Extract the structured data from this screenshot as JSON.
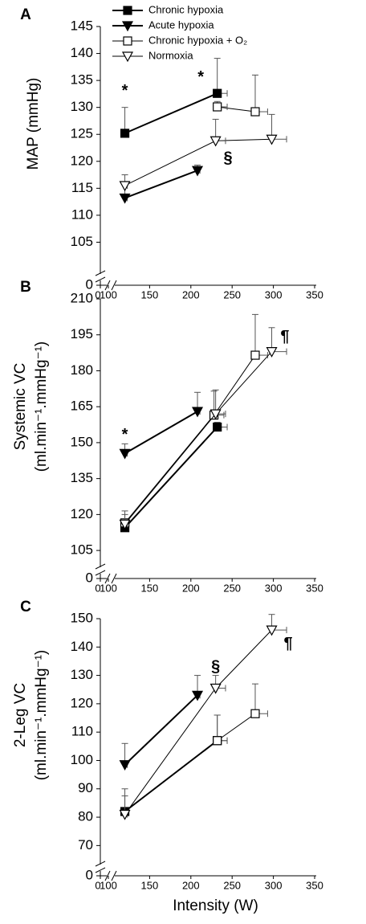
{
  "chart_data": [
    {
      "type": "line",
      "panel": "A",
      "ylabel": [
        "MAP (mmHg)"
      ],
      "xlim": [
        0,
        350
      ],
      "xbreak": [
        0,
        100
      ],
      "xticks": [
        0,
        100,
        150,
        200,
        250,
        300,
        350
      ],
      "ylim": [
        0,
        145
      ],
      "ybreak": [
        0,
        100
      ],
      "yticks": [
        0,
        105,
        110,
        115,
        120,
        125,
        130,
        135,
        140,
        145
      ],
      "legend": "top",
      "series": [
        {
          "name": "Chronic hypoxia",
          "color": "#000000",
          "marker": "square",
          "filled": true,
          "linewidth": 2,
          "x": [
            120,
            232
          ],
          "values": [
            125.2,
            132.6
          ],
          "yerr": [
            4.8,
            6.5
          ],
          "xerr": [
            4,
            12
          ]
        },
        {
          "name": "Acute hypoxia",
          "color": "#000000",
          "marker": "triangle-down",
          "filled": true,
          "linewidth": 2,
          "x": [
            120,
            208
          ],
          "values": [
            113.2,
            118.3
          ],
          "yerr": [
            2.7,
            1
          ],
          "xerr": [
            3,
            3
          ]
        },
        {
          "name": "Chronic hypoxia + O₂",
          "color": "#000000",
          "marker": "square",
          "filled": false,
          "linewidth": 1,
          "x": [
            232,
            278
          ],
          "values": [
            130.1,
            129.2
          ],
          "yerr": [
            1,
            6.8
          ],
          "xerr": [
            12,
            15
          ]
        },
        {
          "name": "Normoxia",
          "color": "#000000",
          "marker": "triangle-down",
          "filled": false,
          "linewidth": 1,
          "x": [
            120,
            230,
            298
          ],
          "values": [
            115.5,
            123.8,
            124.1
          ],
          "yerr": [
            2,
            4,
            4.6
          ],
          "xerr": [
            3,
            12,
            18
          ]
        }
      ],
      "annotations": [
        {
          "text": "*",
          "x": 120,
          "y": 133
        },
        {
          "text": "*",
          "x": 212,
          "y": 135.5
        },
        {
          "text": "§",
          "x": 245,
          "y": 120.5
        }
      ]
    },
    {
      "type": "line",
      "panel": "B",
      "ylabel": [
        "Systemic VC",
        "(ml.min⁻¹.mmHg⁻¹)"
      ],
      "xlim": [
        0,
        350
      ],
      "xbreak": [
        0,
        100
      ],
      "xticks": [
        0,
        100,
        150,
        200,
        250,
        300,
        350
      ],
      "ylim": [
        0,
        210
      ],
      "ybreak": [
        0,
        100
      ],
      "yticks": [
        0,
        105,
        120,
        135,
        150,
        165,
        180,
        195,
        210
      ],
      "series": [
        {
          "name": "Chronic hypoxia",
          "color": "#000000",
          "marker": "square",
          "filled": true,
          "linewidth": 2,
          "x": [
            120,
            232
          ],
          "values": [
            114.5,
            156.5
          ],
          "yerr": [
            2.5,
            2
          ],
          "xerr": [
            3,
            12
          ]
        },
        {
          "name": "Acute hypoxia",
          "color": "#000000",
          "marker": "triangle-down",
          "filled": true,
          "linewidth": 2,
          "x": [
            120,
            208
          ],
          "values": [
            145.5,
            163
          ],
          "yerr": [
            4,
            8
          ],
          "xerr": [
            3,
            3
          ]
        },
        {
          "name": "Chronic hypoxia + O₂",
          "color": "#000000",
          "marker": "square",
          "filled": false,
          "linewidth": 1,
          "x": [
            120,
            228,
            278
          ],
          "values": [
            116.5,
            161.5,
            186.5
          ],
          "yerr": [
            5,
            10,
            17
          ],
          "xerr": [
            3,
            12,
            15
          ]
        },
        {
          "name": "Normoxia",
          "color": "#000000",
          "marker": "triangle-down",
          "filled": false,
          "linewidth": 1,
          "x": [
            120,
            230,
            298
          ],
          "values": [
            116,
            162,
            188
          ],
          "yerr": [
            4,
            10,
            10
          ],
          "xerr": [
            3,
            12,
            18
          ]
        }
      ],
      "annotations": [
        {
          "text": "*",
          "x": 120,
          "y": 153
        },
        {
          "text": "¶",
          "x": 314,
          "y": 194
        }
      ]
    },
    {
      "type": "line",
      "panel": "C",
      "ylabel": [
        "2-Leg VC",
        "(ml.min⁻¹.mmHg⁻¹)"
      ],
      "xlabel": "Intensity (W)",
      "xlim": [
        0,
        350
      ],
      "xbreak": [
        0,
        100
      ],
      "xticks": [
        0,
        100,
        150,
        200,
        250,
        300,
        350
      ],
      "ylim": [
        0,
        150
      ],
      "ybreak": [
        0,
        65
      ],
      "yticks": [
        0,
        70,
        80,
        90,
        100,
        110,
        120,
        130,
        140,
        150
      ],
      "series": [
        {
          "name": "Chronic hypoxia",
          "color": "#000000",
          "marker": "square",
          "filled": true,
          "linewidth": 2,
          "x": [
            120,
            232
          ],
          "values": [
            82,
            107
          ],
          "yerr": [
            8,
            9
          ],
          "xerr": [
            3,
            12
          ]
        },
        {
          "name": "Acute hypoxia",
          "color": "#000000",
          "marker": "triangle-down",
          "filled": true,
          "linewidth": 2,
          "x": [
            120,
            208
          ],
          "values": [
            98.5,
            123
          ],
          "yerr": [
            7.5,
            7
          ],
          "xerr": [
            3,
            3
          ]
        },
        {
          "name": "Chronic hypoxia + O₂",
          "color": "#000000",
          "marker": "square",
          "filled": false,
          "linewidth": 1,
          "x": [
            232,
            278
          ],
          "values": [
            107,
            116.5
          ],
          "yerr": [
            9,
            10.5
          ],
          "xerr": [
            12,
            15
          ]
        },
        {
          "name": "Normoxia",
          "color": "#000000",
          "marker": "triangle-down",
          "filled": false,
          "linewidth": 1,
          "x": [
            120,
            230,
            298
          ],
          "values": [
            81,
            125.5,
            146
          ],
          "yerr": [
            6.5,
            4.5,
            5.5
          ],
          "xerr": [
            3,
            12,
            18
          ]
        }
      ],
      "annotations": [
        {
          "text": "§",
          "x": 230,
          "y": 133
        },
        {
          "text": "¶",
          "x": 318,
          "y": 141
        }
      ]
    }
  ]
}
